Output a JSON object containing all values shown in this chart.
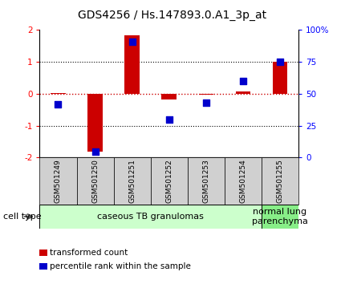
{
  "title": "GDS4256 / Hs.147893.0.A1_3p_at",
  "samples": [
    "GSM501249",
    "GSM501250",
    "GSM501251",
    "GSM501252",
    "GSM501253",
    "GSM501254",
    "GSM501255"
  ],
  "transformed_count": [
    0.02,
    -1.82,
    1.82,
    -0.18,
    -0.04,
    0.08,
    1.0
  ],
  "percentile_rank": [
    42,
    5,
    91,
    30,
    43,
    60,
    75
  ],
  "ylim_left": [
    -2,
    2
  ],
  "ylim_right": [
    0,
    100
  ],
  "yticks_left": [
    -2,
    -1,
    0,
    1,
    2
  ],
  "yticks_right": [
    0,
    25,
    50,
    75,
    100
  ],
  "ytick_labels_right": [
    "0",
    "25",
    "50",
    "75",
    "100%"
  ],
  "bar_color": "#cc0000",
  "dot_color": "#0000cc",
  "hline_red_color": "#cc0000",
  "hline_black_color": "black",
  "bg_color": "#ffffff",
  "sample_box_color": "#d0d0d0",
  "group1_color": "#ccffcc",
  "group2_color": "#88ee88",
  "groups": [
    {
      "label": "caseous TB granulomas",
      "start": 0,
      "end": 5
    },
    {
      "label": "normal lung\nparenchyma",
      "start": 6,
      "end": 6
    }
  ],
  "cell_type_label": "cell type",
  "legend": [
    {
      "color": "#cc0000",
      "label": "transformed count"
    },
    {
      "color": "#0000cc",
      "label": "percentile rank within the sample"
    }
  ],
  "bar_width": 0.4,
  "dot_size": 40,
  "title_fontsize": 10,
  "tick_fontsize": 7.5,
  "sample_fontsize": 6.5,
  "group_fontsize": 8,
  "legend_fontsize": 7.5,
  "cell_type_fontsize": 8
}
